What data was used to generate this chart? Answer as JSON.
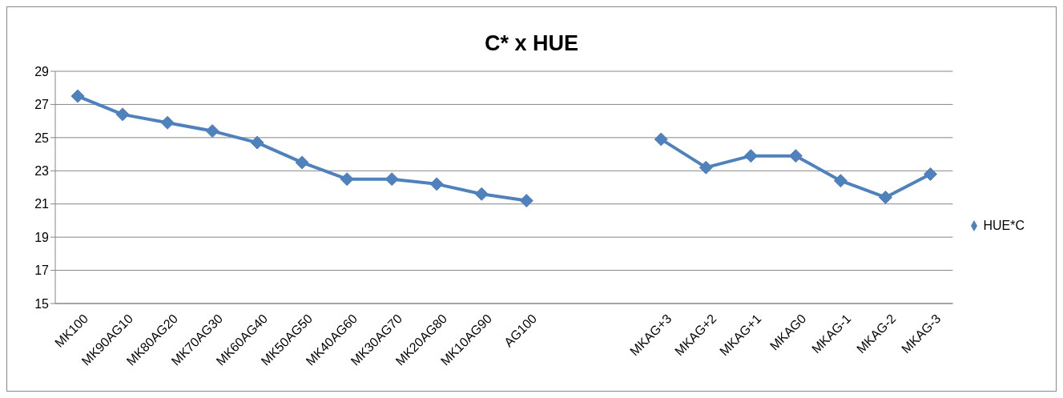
{
  "chart_data": {
    "type": "line",
    "title": "C* x HUE",
    "categories": [
      "MK100",
      "MK90AG10",
      "MK80AG20",
      "MK70AG30",
      "MK60AG40",
      "MK50AG50",
      "MK40AG60",
      "MK30AG70",
      "MK20AG80",
      "MK10AG90",
      "AG100",
      null,
      null,
      "MKAG+3",
      "MKAG+2",
      "MKAG+1",
      "MKAG0",
      "MKAG-1",
      "MKAG-2",
      "MKAG-3"
    ],
    "series": [
      {
        "name": "HUE*C",
        "color": "#4f81bd",
        "values": [
          27.5,
          26.4,
          25.9,
          25.4,
          24.7,
          23.5,
          22.5,
          22.5,
          22.2,
          21.6,
          21.2,
          null,
          null,
          24.9,
          23.2,
          23.9,
          23.9,
          22.4,
          21.4,
          22.8
        ]
      }
    ],
    "ylim": [
      15,
      29
    ],
    "yticks": [
      15,
      17,
      19,
      21,
      23,
      25,
      27,
      29
    ],
    "grid": "y",
    "legend": "right",
    "marker": "diamond",
    "line_style": "solid"
  }
}
